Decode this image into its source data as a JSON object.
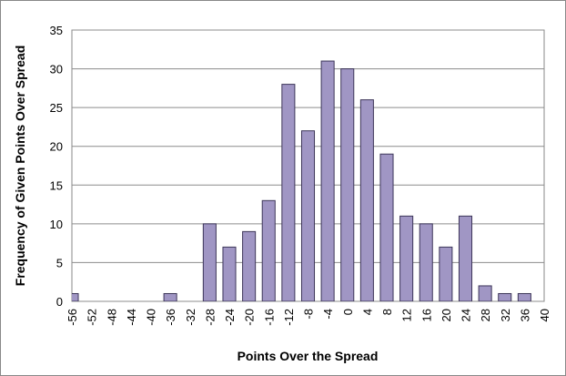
{
  "chart_data": {
    "type": "bar",
    "x_label": "Points Over the Spread",
    "y_label": "Frequency of Given Points Over Spread",
    "categories": [
      -56,
      -52,
      -48,
      -44,
      -40,
      -36,
      -32,
      -28,
      -24,
      -20,
      -16,
      -12,
      -8,
      -4,
      0,
      4,
      8,
      12,
      16,
      20,
      24,
      28,
      32,
      36,
      40
    ],
    "values": [
      1,
      0,
      0,
      0,
      0,
      1,
      0,
      10,
      7,
      9,
      13,
      28,
      22,
      31,
      30,
      26,
      19,
      11,
      10,
      7,
      11,
      2,
      1,
      1,
      0
    ],
    "color": "#a096c4",
    "ylim": [
      0,
      35
    ],
    "yticks": [
      0,
      5,
      10,
      15,
      20,
      25,
      30,
      35
    ],
    "grid": true
  }
}
